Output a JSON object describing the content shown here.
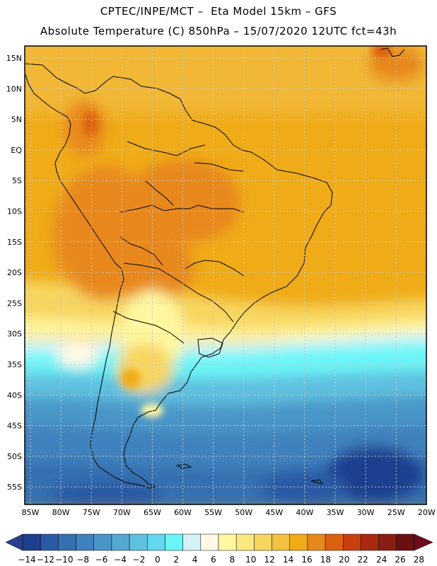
{
  "header": {
    "line1": "CPTEC/INPE/MCT –  Eta Model 15km – GFS",
    "line2": "Absolute Temperature (C) 850hPa – 15/07/2020 12UTC fct=43h"
  },
  "map": {
    "lat_labels": [
      "15N",
      "10N",
      "5N",
      "EQ",
      "5S",
      "10S",
      "15S",
      "20S",
      "25S",
      "30S",
      "35S",
      "40S",
      "45S",
      "50S",
      "55S"
    ],
    "lon_labels": [
      "85W",
      "80W",
      "75W",
      "70W",
      "65W",
      "60W",
      "55W",
      "50W",
      "45W",
      "40W",
      "35W",
      "30W",
      "25W",
      "20W"
    ],
    "region": "South America"
  },
  "colorbar": {
    "labels": [
      "-14",
      "-12",
      "-10",
      "-8",
      "-6",
      "-4",
      "-2",
      "0",
      "2",
      "4",
      "6",
      "8",
      "10",
      "12",
      "14",
      "16",
      "18",
      "20",
      "22",
      "24",
      "26",
      "28"
    ],
    "colors": [
      "#1f3f8f",
      "#2a5aa5",
      "#3570b0",
      "#3f82bd",
      "#4a95c8",
      "#55a8d2",
      "#5fc0df",
      "#63d8ee",
      "#6af5f8",
      "#d4f3f8",
      "#fff8e6",
      "#fff7a0",
      "#fae880",
      "#f7d660",
      "#f2c240",
      "#efab18",
      "#e8881a",
      "#dc6010",
      "#c84010",
      "#aa2a10",
      "#8b1e12",
      "#6a1010"
    ],
    "under_color": "#283e8c",
    "over_color": "#6e0a1e"
  }
}
